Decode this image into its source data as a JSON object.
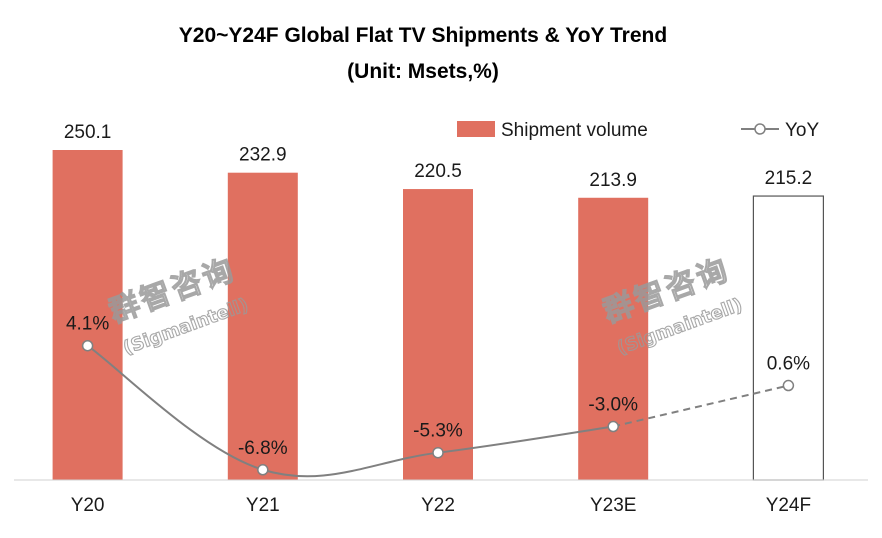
{
  "chart_data": {
    "type": "bar",
    "title": "Y20~Y24F Global Flat TV Shipments & YoY Trend",
    "subtitle": "(Unit: Msets,%)",
    "categories": [
      "Y20",
      "Y21",
      "Y22",
      "Y23E",
      "Y24F"
    ],
    "series": [
      {
        "name": "Shipment volume",
        "type": "bar",
        "values": [
          250.1,
          232.9,
          220.5,
          213.9,
          215.2
        ],
        "value_labels": [
          "250.1",
          "232.9",
          "220.5",
          "213.9",
          "215.2"
        ],
        "forecast_from_index": 4
      },
      {
        "name": "YoY",
        "type": "line",
        "values": [
          4.1,
          -6.8,
          -5.3,
          -3.0,
          0.6
        ],
        "value_labels": [
          "4.1%",
          "-6.8%",
          "-5.3%",
          "-3.0%",
          "0.6%"
        ],
        "dashed_from_index": 3
      }
    ],
    "bar_ylim": [
      0,
      250.1
    ],
    "line_ylim": [
      -7.7,
      21.3
    ],
    "legend_position": "top-right",
    "grid": false,
    "colors": {
      "bar": "#e07060",
      "forecast_bar_fill": "#ffffff",
      "forecast_bar_stroke": "#555555",
      "line": "#808080",
      "axis": "#d0d0d0"
    },
    "watermark": {
      "chinese": "群智咨询",
      "english": "(Sigmaintell)"
    }
  }
}
